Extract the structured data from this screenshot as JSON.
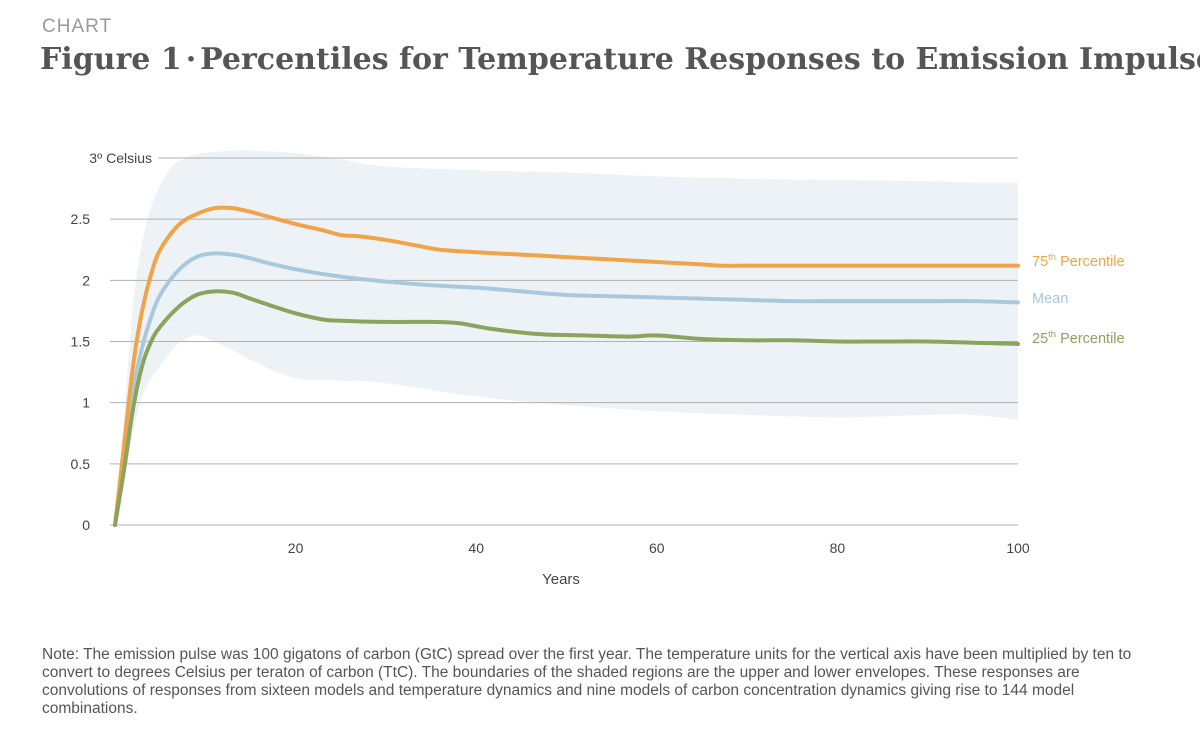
{
  "header": {
    "kicker": "CHART",
    "figure_label": "Figure 1",
    "separator": "·",
    "title": "Percentiles for Temperature Responses to Emission Impulses"
  },
  "note": "Note: The emission pulse was 100 gigatons of carbon (GtC) spread over the first year. The temperature units for the vertical axis have been multiplied by ten to convert to degrees Celsius per teraton of carbon (TtC). The boundaries of the shaded regions are the upper and lower envelopes. These responses are convolutions of responses from sixteen models and temperature dynamics and nine models of carbon concentration dynamics giving rise to 144 model combinations.",
  "colors": {
    "p75": "#f0a447",
    "mean": "#a9c8dc",
    "p25": "#8aa45e",
    "band": "#edf2f6",
    "grid": "#b0b0b0",
    "text": "#444444"
  },
  "chart_data": {
    "type": "line",
    "title": "Percentiles for Temperature Responses to Emission Impulses",
    "xlabel": "Years",
    "ylabel": "",
    "xlim": [
      0,
      100
    ],
    "ylim": [
      0,
      3
    ],
    "x_ticks": [
      {
        "value": 20,
        "label": "20"
      },
      {
        "value": 40,
        "label": "40"
      },
      {
        "value": 60,
        "label": "60"
      },
      {
        "value": 80,
        "label": "80"
      },
      {
        "value": 100,
        "label": "100"
      }
    ],
    "y_ticks": [
      {
        "value": 0,
        "label": "0"
      },
      {
        "value": 0.5,
        "label": "0.5"
      },
      {
        "value": 1,
        "label": "1"
      },
      {
        "value": 1.5,
        "label": "1.5"
      },
      {
        "value": 2,
        "label": "2"
      },
      {
        "value": 2.5,
        "label": "2.5"
      },
      {
        "value": 3,
        "label": "3º Celsius"
      }
    ],
    "grid": true,
    "series": [
      {
        "key": "p75",
        "name": "75th Percentile",
        "label_base": "75",
        "label_sup": "th",
        "label_rest": " Percentile",
        "x": [
          0,
          1,
          2,
          3,
          4,
          5,
          7,
          9,
          11,
          13,
          15,
          17,
          20,
          23,
          25,
          27,
          30,
          33,
          36,
          40,
          45,
          50,
          55,
          60,
          65,
          67,
          70,
          75,
          80,
          85,
          90,
          95,
          100
        ],
        "y": [
          0,
          0.65,
          1.3,
          1.75,
          2.05,
          2.25,
          2.45,
          2.54,
          2.59,
          2.59,
          2.56,
          2.52,
          2.46,
          2.41,
          2.37,
          2.36,
          2.33,
          2.29,
          2.25,
          2.23,
          2.21,
          2.19,
          2.17,
          2.15,
          2.13,
          2.12,
          2.12,
          2.12,
          2.12,
          2.12,
          2.12,
          2.12,
          2.12
        ]
      },
      {
        "key": "mean",
        "name": "Mean",
        "label_base": "Mean",
        "label_sup": "",
        "label_rest": "",
        "x": [
          0,
          1,
          2,
          3,
          4,
          5,
          7,
          9,
          11,
          13,
          15,
          17,
          20,
          25,
          30,
          35,
          40,
          45,
          50,
          55,
          60,
          65,
          70,
          75,
          80,
          85,
          90,
          95,
          100
        ],
        "y": [
          0,
          0.55,
          1.1,
          1.45,
          1.7,
          1.88,
          2.08,
          2.19,
          2.22,
          2.21,
          2.18,
          2.14,
          2.09,
          2.03,
          1.99,
          1.96,
          1.94,
          1.91,
          1.88,
          1.87,
          1.86,
          1.85,
          1.84,
          1.83,
          1.83,
          1.83,
          1.83,
          1.83,
          1.82
        ]
      },
      {
        "key": "p25",
        "name": "25th Percentile",
        "label_base": "25",
        "label_sup": "th",
        "label_rest": " Percentile",
        "x": [
          0,
          1,
          2,
          3,
          4,
          5,
          7,
          9,
          11,
          13,
          15,
          17,
          20,
          23,
          25,
          30,
          35,
          38,
          42,
          47,
          52,
          57,
          60,
          65,
          70,
          75,
          80,
          85,
          90,
          95,
          100
        ],
        "y": [
          0,
          0.45,
          0.95,
          1.3,
          1.5,
          1.62,
          1.78,
          1.88,
          1.91,
          1.9,
          1.85,
          1.8,
          1.73,
          1.68,
          1.67,
          1.66,
          1.66,
          1.65,
          1.6,
          1.56,
          1.55,
          1.54,
          1.55,
          1.52,
          1.51,
          1.51,
          1.5,
          1.5,
          1.5,
          1.49,
          1.48
        ]
      }
    ],
    "band": {
      "name": "Envelope (shaded region)",
      "x": [
        0,
        1,
        2,
        3,
        4,
        5,
        6,
        7,
        9,
        11,
        13,
        15,
        20,
        25,
        30,
        40,
        50,
        60,
        70,
        80,
        90,
        95,
        100
      ],
      "upper": [
        0,
        0.9,
        1.8,
        2.3,
        2.6,
        2.78,
        2.9,
        2.97,
        3.03,
        3.05,
        3.06,
        3.06,
        3.04,
        2.99,
        2.93,
        2.9,
        2.88,
        2.85,
        2.83,
        2.82,
        2.81,
        2.8,
        2.8
      ],
      "lower": [
        0,
        0.35,
        0.75,
        1.05,
        1.2,
        1.3,
        1.4,
        1.48,
        1.55,
        1.5,
        1.43,
        1.35,
        1.2,
        1.18,
        1.16,
        1.05,
        0.98,
        0.93,
        0.9,
        0.88,
        0.9,
        0.9,
        0.86
      ]
    }
  }
}
